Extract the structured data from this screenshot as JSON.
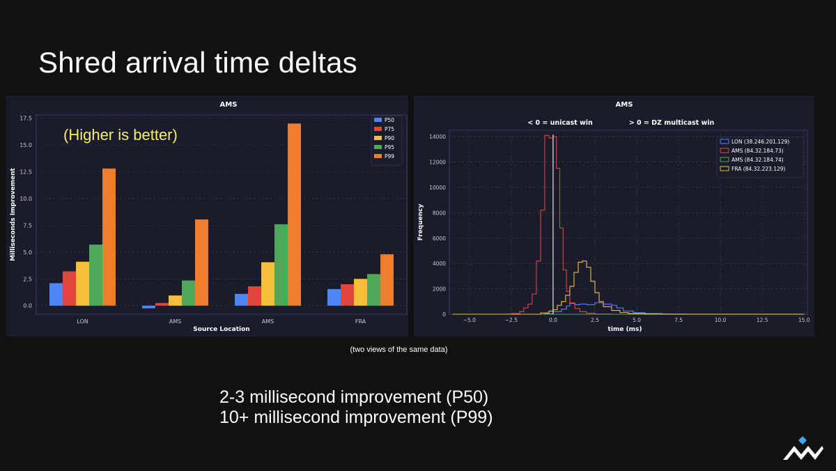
{
  "slide": {
    "title": "Shred arrival time deltas",
    "caption": "(two views of the same data)",
    "summary_lines": [
      "2-3 millisecond improvement (P50)",
      "10+ millisecond improvement (P99)"
    ]
  },
  "chart_data": [
    {
      "type": "bar",
      "title": "AMS",
      "annotation": "(Higher is better)",
      "xlabel": "Source Location",
      "ylabel": "Milliseconds Improvement",
      "categories": [
        "LON",
        "AMS",
        "AMS",
        "FRA"
      ],
      "ylim": [
        -0.8,
        17.8
      ],
      "yticks": [
        0.0,
        2.5,
        5.0,
        7.5,
        10.0,
        12.5,
        15.0,
        17.5
      ],
      "ytick_labels": [
        "0.0",
        "2.5",
        "5.0",
        "7.5",
        "10.0",
        "12.5",
        "15.0",
        "17.5"
      ],
      "legend_position": "top-right",
      "series": [
        {
          "name": "P50",
          "color": "#4f86f7",
          "values": [
            2.1,
            -0.25,
            1.1,
            1.55
          ]
        },
        {
          "name": "P75",
          "color": "#e0463c",
          "values": [
            3.2,
            0.25,
            1.8,
            2.0
          ]
        },
        {
          "name": "P90",
          "color": "#f5bf3b",
          "values": [
            4.1,
            0.95,
            4.05,
            2.5
          ]
        },
        {
          "name": "P95",
          "color": "#4fa85a",
          "values": [
            5.7,
            2.35,
            7.6,
            2.95
          ]
        },
        {
          "name": "P99",
          "color": "#ee7d2d",
          "values": [
            12.8,
            8.05,
            17.0,
            4.8
          ]
        }
      ]
    },
    {
      "type": "line",
      "title": "AMS",
      "subtitle_left": "< 0 = unicast win",
      "subtitle_right": "> 0 = DZ multicast win",
      "xlabel": "time (ms)",
      "ylabel": "Frequency",
      "xlim": [
        -6.2,
        15.2
      ],
      "ylim": [
        0,
        14500
      ],
      "xticks": [
        -5.0,
        -2.5,
        0.0,
        2.5,
        5.0,
        7.5,
        10.0,
        12.5,
        15.0
      ],
      "xtick_labels": [
        "−5.0",
        "−2.5",
        "0.0",
        "2.5",
        "5.0",
        "7.5",
        "10.0",
        "12.5",
        "15.0"
      ],
      "yticks": [
        0,
        2000,
        4000,
        6000,
        8000,
        10000,
        12000,
        14000
      ],
      "ytick_labels": [
        "0",
        "2000",
        "4000",
        "6000",
        "8000",
        "10000",
        "12000",
        "14000"
      ],
      "vline_x": 0,
      "legend_position": "top-right",
      "series": [
        {
          "name": "LON (38.246.201.129)",
          "color": "#4f86f7",
          "points": [
            [
              -6,
              0
            ],
            [
              -1,
              0
            ],
            [
              -0.5,
              50
            ],
            [
              0,
              200
            ],
            [
              0.5,
              400
            ],
            [
              0.8,
              650
            ],
            [
              1.0,
              850
            ],
            [
              1.3,
              750
            ],
            [
              1.6,
              800
            ],
            [
              2,
              750
            ],
            [
              2.5,
              900
            ],
            [
              3,
              800
            ],
            [
              3.5,
              700
            ],
            [
              3.8,
              500
            ],
            [
              4.2,
              250
            ],
            [
              4.8,
              120
            ],
            [
              5.5,
              60
            ],
            [
              6.5,
              20
            ],
            [
              8,
              5
            ],
            [
              15,
              0
            ]
          ]
        },
        {
          "name": "AMS (84.32.184.73)",
          "color": "#e0463c",
          "points": [
            [
              -6,
              0
            ],
            [
              -3.5,
              0
            ],
            [
              -2.5,
              50
            ],
            [
              -2.0,
              200
            ],
            [
              -1.75,
              500
            ],
            [
              -1.5,
              800
            ],
            [
              -1.25,
              1600
            ],
            [
              -1.0,
              4200
            ],
            [
              -0.75,
              8200
            ],
            [
              -0.5,
              14100
            ],
            [
              -0.25,
              13900
            ],
            [
              0,
              14000
            ],
            [
              0.2,
              11500
            ],
            [
              0.4,
              6800
            ],
            [
              0.6,
              3500
            ],
            [
              0.8,
              1800
            ],
            [
              1.0,
              900
            ],
            [
              1.3,
              450
            ],
            [
              1.6,
              200
            ],
            [
              2.0,
              80
            ],
            [
              2.5,
              20
            ],
            [
              3.5,
              0
            ],
            [
              15,
              0
            ]
          ]
        },
        {
          "name": "AMS (84.32.184.74)",
          "color": "#4fa85a",
          "points": [
            [
              -6,
              0
            ],
            [
              15,
              0
            ]
          ]
        },
        {
          "name": "FRA (84.32.223.129)",
          "color": "#f5bf3b",
          "points": [
            [
              -6,
              0
            ],
            [
              -1.5,
              0
            ],
            [
              -0.75,
              100
            ],
            [
              -0.25,
              250
            ],
            [
              0,
              350
            ],
            [
              0.25,
              700
            ],
            [
              0.5,
              1000
            ],
            [
              0.75,
              1500
            ],
            [
              1.0,
              2200
            ],
            [
              1.25,
              3300
            ],
            [
              1.5,
              4100
            ],
            [
              1.75,
              4200
            ],
            [
              2.0,
              3700
            ],
            [
              2.25,
              2600
            ],
            [
              2.5,
              1700
            ],
            [
              2.75,
              1000
            ],
            [
              3.0,
              600
            ],
            [
              3.5,
              300
            ],
            [
              4.0,
              130
            ],
            [
              4.5,
              50
            ],
            [
              5.5,
              10
            ],
            [
              7,
              0
            ],
            [
              15,
              0
            ]
          ]
        }
      ]
    }
  ],
  "logo": {
    "name": "doublezero-logo",
    "accent": "#3fa9f5"
  }
}
